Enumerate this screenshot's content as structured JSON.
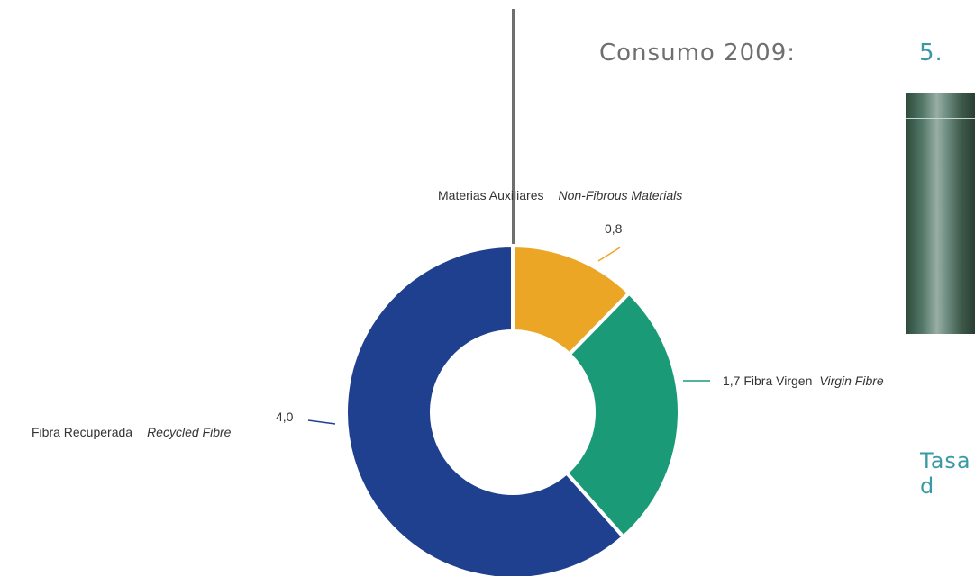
{
  "header": {
    "consumo_label": "Consumo 2009:",
    "consumo_value": "5."
  },
  "side": {
    "tasa_label": "Tasa d"
  },
  "chart_data": {
    "type": "pie",
    "donut": true,
    "slices": [
      {
        "label_es": "Materias Auxiliares",
        "label_en": "Non-Fibrous Materials",
        "value": 0.8,
        "value_label": "0,8",
        "color": "#eca626"
      },
      {
        "label_es": "Fibra Virgen",
        "label_en": "Virgin Fibre",
        "value": 1.7,
        "value_label": "1,7",
        "color": "#1b9a78"
      },
      {
        "label_es": "Fibra Recuperada",
        "label_en": "Recycled Fibre",
        "value": 4.0,
        "value_label": "4,0",
        "color": "#1f3f8f"
      }
    ]
  }
}
